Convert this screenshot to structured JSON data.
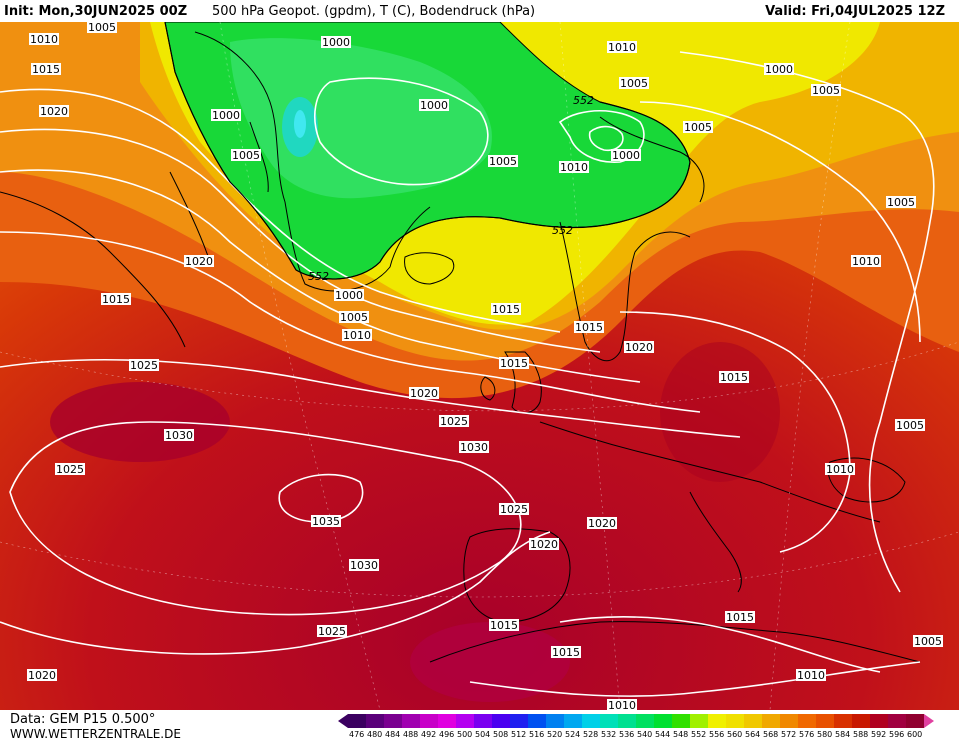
{
  "header": {
    "init": "Init: Mon,30JUN2025 00Z",
    "parameters": "500 hPa Geopot. (gpdm), T (C), Bodendruck (hPa)",
    "valid": "Valid: Fri,04JUL2025 12Z"
  },
  "footer": {
    "data_source": "Data: GEM P15 0.500°",
    "website": "WWW.WETTERZENTRALE.DE"
  },
  "colorbar": {
    "ticks": [
      "476",
      "480",
      "484",
      "488",
      "492",
      "496",
      "500",
      "504",
      "508",
      "512",
      "516",
      "520",
      "524",
      "528",
      "532",
      "536",
      "540",
      "544",
      "548",
      "552",
      "556",
      "560",
      "564",
      "568",
      "572",
      "576",
      "580",
      "584",
      "588",
      "592",
      "596",
      "600"
    ],
    "colors": [
      "#3b0060",
      "#5a007a",
      "#7a0090",
      "#a000b0",
      "#c800c8",
      "#e000e0",
      "#b400f0",
      "#7a00f0",
      "#4a00f0",
      "#2020f0",
      "#0050f0",
      "#0080f0",
      "#00a8f0",
      "#00d0e8",
      "#00e0b8",
      "#00e090",
      "#00e060",
      "#00e030",
      "#30e000",
      "#a0f000",
      "#f0f000",
      "#f0e000",
      "#f0c800",
      "#f0a800",
      "#f08800",
      "#f06800",
      "#e85000",
      "#d83000",
      "#c81800",
      "#b00020",
      "#a00040",
      "#900030"
    ]
  },
  "isobar_labels": [
    "1005",
    "1010",
    "1015",
    "1020",
    "1000",
    "1005",
    "1020",
    "1015",
    "1000",
    "1005",
    "1010",
    "1000",
    "1005",
    "1010",
    "1000",
    "1005",
    "1005",
    "1000",
    "1000",
    "1005",
    "1010",
    "1010",
    "1015",
    "1015",
    "1015",
    "1020",
    "1025",
    "1020",
    "1025",
    "1030",
    "1025",
    "1030",
    "1035",
    "1030",
    "1025",
    "1025",
    "1020",
    "1020",
    "1015",
    "1015",
    "1010",
    "1015",
    "1015",
    "1010",
    "1005",
    "1010",
    "1005",
    "1005",
    "1020"
  ],
  "contour_labels": [
    "552",
    "552",
    "552"
  ]
}
